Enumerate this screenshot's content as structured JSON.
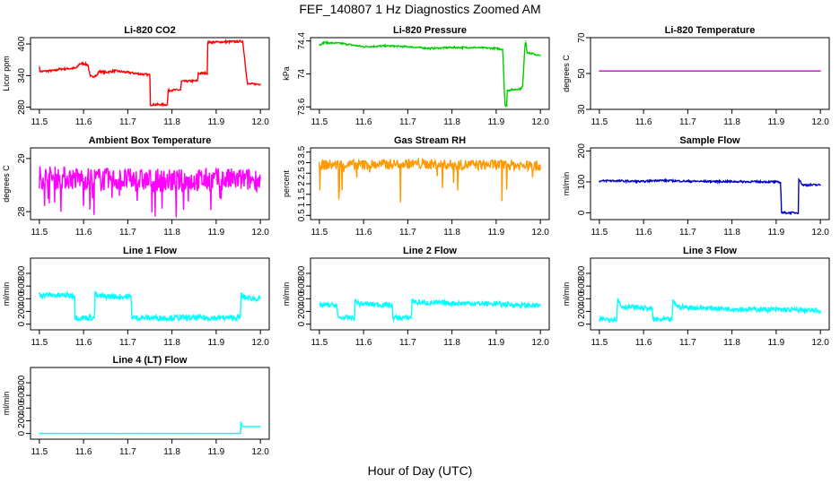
{
  "page": {
    "title": "FEF_140807  1 Hz Diagnostics Zoomed AM",
    "x_caption": "Hour of Day (UTC)"
  },
  "chart_data": [
    {
      "type": "line",
      "title": "Li-820 CO2",
      "ylabel": "Licor ppm",
      "color": "#ff0000",
      "xlim": [
        11.48,
        12.02
      ],
      "ylim": [
        276,
        412
      ],
      "x_ticks": [
        "11.5",
        "11.6",
        "11.7",
        "11.8",
        "11.9",
        "12.0"
      ],
      "y_ticks": [
        280,
        340,
        400
      ],
      "noise": 2,
      "x": [
        11.5,
        11.501,
        11.505,
        11.54,
        11.541,
        11.58,
        11.585,
        11.59,
        11.6,
        11.61,
        11.615,
        11.63,
        11.635,
        11.65,
        11.67,
        11.7,
        11.75,
        11.751,
        11.79,
        11.791,
        11.82,
        11.821,
        11.858,
        11.859,
        11.88,
        11.881,
        11.96,
        11.97,
        11.971,
        12.0
      ],
      "y": [
        358,
        348,
        348,
        350,
        352,
        354,
        355,
        362,
        363,
        360,
        338,
        340,
        348,
        346,
        349,
        346,
        341,
        285,
        285,
        312,
        313,
        329,
        330,
        344,
        345,
        403,
        405,
        330,
        324,
        324
      ]
    },
    {
      "type": "line",
      "title": "Li-820 Pressure",
      "ylabel": "kPa",
      "color": "#00cc00",
      "xlim": [
        11.48,
        12.02
      ],
      "ylim": [
        73.57,
        74.44
      ],
      "x_ticks": [
        "11.5",
        "11.6",
        "11.7",
        "11.8",
        "11.9",
        "12.0"
      ],
      "y_ticks": [
        73.6,
        74.0,
        74.4
      ],
      "noise": 0.01,
      "x": [
        11.5,
        11.51,
        11.55,
        11.6,
        11.65,
        11.7,
        11.75,
        11.8,
        11.85,
        11.9,
        11.91,
        11.915,
        11.918,
        11.92,
        11.924,
        11.925,
        11.955,
        11.96,
        11.965,
        11.967,
        11.97,
        12.0
      ],
      "y": [
        74.35,
        74.38,
        74.37,
        74.33,
        74.34,
        74.33,
        74.31,
        74.32,
        74.32,
        74.31,
        74.3,
        74.3,
        73.85,
        73.62,
        73.61,
        73.8,
        73.82,
        73.85,
        74.35,
        74.4,
        74.26,
        74.22
      ]
    },
    {
      "type": "line",
      "title": "Li-820 Temperature",
      "ylabel": "degrees C",
      "color": "#cc00cc",
      "xlim": [
        11.48,
        12.02
      ],
      "ylim": [
        30,
        70
      ],
      "x_ticks": [
        "11.5",
        "11.6",
        "11.7",
        "11.8",
        "11.9",
        "12.0"
      ],
      "y_ticks": [
        30,
        50,
        70
      ],
      "noise": 0,
      "x": [
        11.5,
        12.0
      ],
      "y": [
        51.4,
        51.4
      ]
    },
    {
      "type": "line",
      "title": "Ambient Box Temperature",
      "ylabel": "degrees C",
      "color": "#ff00ff",
      "xlim": [
        11.48,
        12.02
      ],
      "ylim": [
        27.85,
        29.2
      ],
      "x_ticks": [
        "11.5",
        "11.6",
        "11.7",
        "11.8",
        "11.9",
        "12.0"
      ],
      "y_ticks": [
        28.0,
        29.0
      ],
      "noise": 0.22,
      "x": [
        11.5,
        11.6,
        11.7,
        11.8,
        11.9,
        12.0
      ],
      "y": [
        28.65,
        28.62,
        28.6,
        28.58,
        28.6,
        28.6
      ]
    },
    {
      "type": "line",
      "title": "Gas Stream RH",
      "ylabel": "percent",
      "color": "#ff9900",
      "xlim": [
        11.48,
        12.02
      ],
      "ylim": [
        0.3,
        3.7
      ],
      "x_ticks": [
        "11.5",
        "11.6",
        "11.7",
        "11.8",
        "11.9",
        "12.0"
      ],
      "y_ticks": [
        0.5,
        1.0,
        1.5,
        2.0,
        2.5,
        3.0,
        3.5
      ],
      "noise": 0.25,
      "x": [
        11.5,
        11.6,
        11.7,
        11.8,
        11.9,
        12.0
      ],
      "y": [
        2.9,
        2.9,
        2.95,
        2.9,
        2.9,
        2.85
      ]
    },
    {
      "type": "line",
      "title": "Sample Flow",
      "ylabel": "ml/min",
      "color": "#0000cc",
      "xlim": [
        11.48,
        12.02
      ],
      "ylim": [
        -22,
        210
      ],
      "x_ticks": [
        "11.5",
        "11.6",
        "11.7",
        "11.8",
        "11.9",
        "12.0"
      ],
      "y_ticks": [
        0,
        100,
        200
      ],
      "noise": 3,
      "x": [
        11.5,
        11.52,
        11.6,
        11.63,
        11.7,
        11.8,
        11.9,
        11.91,
        11.912,
        11.95,
        11.951,
        11.955,
        11.96,
        12.0
      ],
      "y": [
        102,
        104,
        101,
        105,
        102,
        101,
        100,
        98,
        0,
        0,
        110,
        100,
        90,
        90
      ]
    },
    {
      "type": "line",
      "title": "Line 1 Flow",
      "ylabel": "ml/min",
      "color": "#00ffff",
      "xlim": [
        11.48,
        12.02
      ],
      "ylim": [
        -90,
        1040
      ],
      "x_ticks": [
        "11.5",
        "11.6",
        "11.7",
        "11.8",
        "11.9",
        "12.0"
      ],
      "y_ticks": [
        0,
        200,
        400,
        600,
        800
      ],
      "noise": 45,
      "x": [
        11.5,
        11.505,
        11.58,
        11.581,
        11.625,
        11.626,
        11.63,
        11.708,
        11.709,
        11.955,
        11.956,
        11.96,
        12.0
      ],
      "y": [
        480,
        460,
        450,
        100,
        100,
        520,
        440,
        430,
        100,
        100,
        480,
        420,
        400
      ]
    },
    {
      "type": "line",
      "title": "Line 2 Flow",
      "ylabel": "ml/min",
      "color": "#00ffff",
      "xlim": [
        11.48,
        12.02
      ],
      "ylim": [
        -90,
        1040
      ],
      "x_ticks": [
        "11.5",
        "11.6",
        "11.7",
        "11.8",
        "11.9",
        "12.0"
      ],
      "y_ticks": [
        0,
        200,
        400,
        600,
        800
      ],
      "noise": 40,
      "x": [
        11.5,
        11.54,
        11.541,
        11.58,
        11.581,
        11.59,
        11.665,
        11.666,
        11.708,
        11.709,
        11.72,
        11.8,
        11.9,
        11.96,
        12.0
      ],
      "y": [
        300,
        300,
        100,
        100,
        380,
        320,
        300,
        100,
        100,
        380,
        340,
        330,
        320,
        300,
        290
      ]
    },
    {
      "type": "line",
      "title": "Line 3 Flow",
      "ylabel": "ml/min",
      "color": "#00ffff",
      "xlim": [
        11.48,
        12.02
      ],
      "ylim": [
        -90,
        1040
      ],
      "x_ticks": [
        "11.5",
        "11.6",
        "11.7",
        "11.8",
        "11.9",
        "12.0"
      ],
      "y_ticks": [
        0,
        200,
        400,
        600,
        800
      ],
      "noise": 40,
      "x": [
        11.5,
        11.503,
        11.54,
        11.541,
        11.55,
        11.62,
        11.621,
        11.665,
        11.666,
        11.68,
        11.8,
        11.9,
        11.96,
        12.0
      ],
      "y": [
        40,
        80,
        80,
        400,
        280,
        240,
        70,
        70,
        360,
        270,
        240,
        230,
        220,
        210
      ]
    },
    {
      "type": "line",
      "title": "Line 4 (LT) Flow",
      "ylabel": "ml/min",
      "color": "#00ffff",
      "xlim": [
        11.48,
        12.02
      ],
      "ylim": [
        -90,
        1040
      ],
      "x_ticks": [
        "11.5",
        "11.6",
        "11.7",
        "11.8",
        "11.9",
        "12.0"
      ],
      "y_ticks": [
        0,
        200,
        400,
        600,
        800
      ],
      "noise": 2,
      "x": [
        11.5,
        11.955,
        11.956,
        11.96,
        12.0
      ],
      "y": [
        0,
        0,
        180,
        110,
        110
      ]
    }
  ]
}
